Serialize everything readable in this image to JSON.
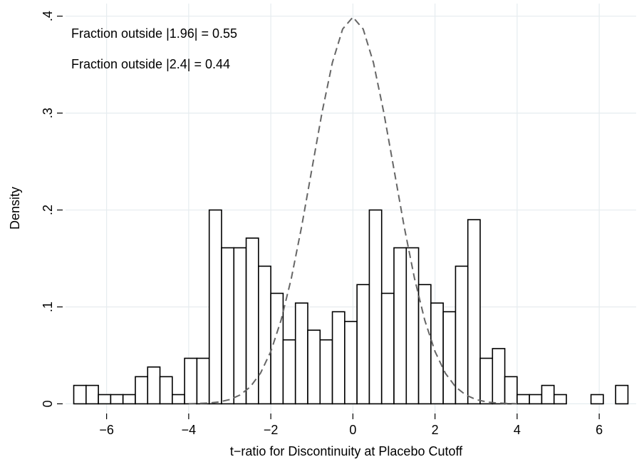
{
  "chart_data": {
    "type": "histogram",
    "x_label": "t−ratio for Discontinuity at Placebo Cutoff",
    "y_label": "Density",
    "annotations": [
      "Fraction outside |1.96| = 0.55",
      "Fraction outside |2.4| = 0.44"
    ],
    "bins": [
      -6.8,
      -6.5,
      -6.2,
      -5.9,
      -5.6,
      -5.3,
      -5,
      -4.7,
      -4.4,
      -4.1,
      -3.8,
      -3.5,
      -3.2,
      -2.9,
      -2.6,
      -2.3,
      -2,
      -1.7,
      -1.4,
      -1.1,
      -0.8,
      -0.5,
      -0.2,
      0.1,
      0.4,
      0.7,
      1,
      1.3,
      1.6,
      1.9,
      2.2,
      2.5,
      2.8,
      3.1,
      3.4,
      3.7,
      4,
      4.3,
      4.6,
      4.9,
      5.2,
      5.5,
      5.8,
      6.1,
      6.4,
      6.7
    ],
    "values": [
      0.019,
      0.019,
      0.0095,
      0.0095,
      0.0095,
      0.028,
      0.038,
      0.028,
      0.0095,
      0.047,
      0.047,
      0.2,
      0.161,
      0.161,
      0.171,
      0.142,
      0.114,
      0.066,
      0.104,
      0.076,
      0.066,
      0.095,
      0.085,
      0.123,
      0.2,
      0.114,
      0.161,
      0.161,
      0.123,
      0.104,
      0.095,
      0.142,
      0.19,
      0.047,
      0.057,
      0.028,
      0.0095,
      0.0095,
      0.019,
      0.0095,
      0,
      0,
      0.0095,
      0,
      0.019
    ],
    "fill": "#ffffff",
    "edge_color": "#000000",
    "curve": {
      "color": "#666666",
      "dash": true,
      "x": [
        -4,
        -3.75,
        -3.5,
        -3.25,
        -3,
        -2.75,
        -2.5,
        -2.25,
        -2,
        -1.75,
        -1.5,
        -1.25,
        -1,
        -0.75,
        -0.5,
        -0.25,
        0,
        0.25,
        0.5,
        0.75,
        1,
        1.25,
        1.5,
        1.75,
        2,
        2.25,
        2.5,
        2.75,
        3,
        3.25,
        3.5,
        3.75,
        4
      ],
      "values": [
        0.0001,
        0.0004,
        0.0009,
        0.002,
        0.0044,
        0.0091,
        0.0175,
        0.0317,
        0.054,
        0.0863,
        0.1295,
        0.1826,
        0.242,
        0.3011,
        0.3521,
        0.3867,
        0.399,
        0.3867,
        0.3521,
        0.3011,
        0.242,
        0.1826,
        0.1295,
        0.0863,
        0.054,
        0.0317,
        0.0175,
        0.0091,
        0.0044,
        0.002,
        0.0009,
        0.0004,
        0.0001
      ]
    },
    "xlim": [
      -7,
      6.9
    ],
    "ylim": [
      -0.01,
      0.413
    ],
    "xticks": [
      {
        "value": -6,
        "label": "−6"
      },
      {
        "value": -4,
        "label": "−4"
      },
      {
        "value": -2,
        "label": "−2"
      },
      0,
      2,
      4,
      6
    ],
    "yticks": [
      0,
      {
        "value": 0.1,
        "label": ".1"
      },
      {
        "value": 0.2,
        "label": ".2"
      },
      {
        "value": 0.3,
        "label": ".3"
      },
      {
        "value": 0.4,
        "label": ".4"
      }
    ],
    "grid": true
  }
}
